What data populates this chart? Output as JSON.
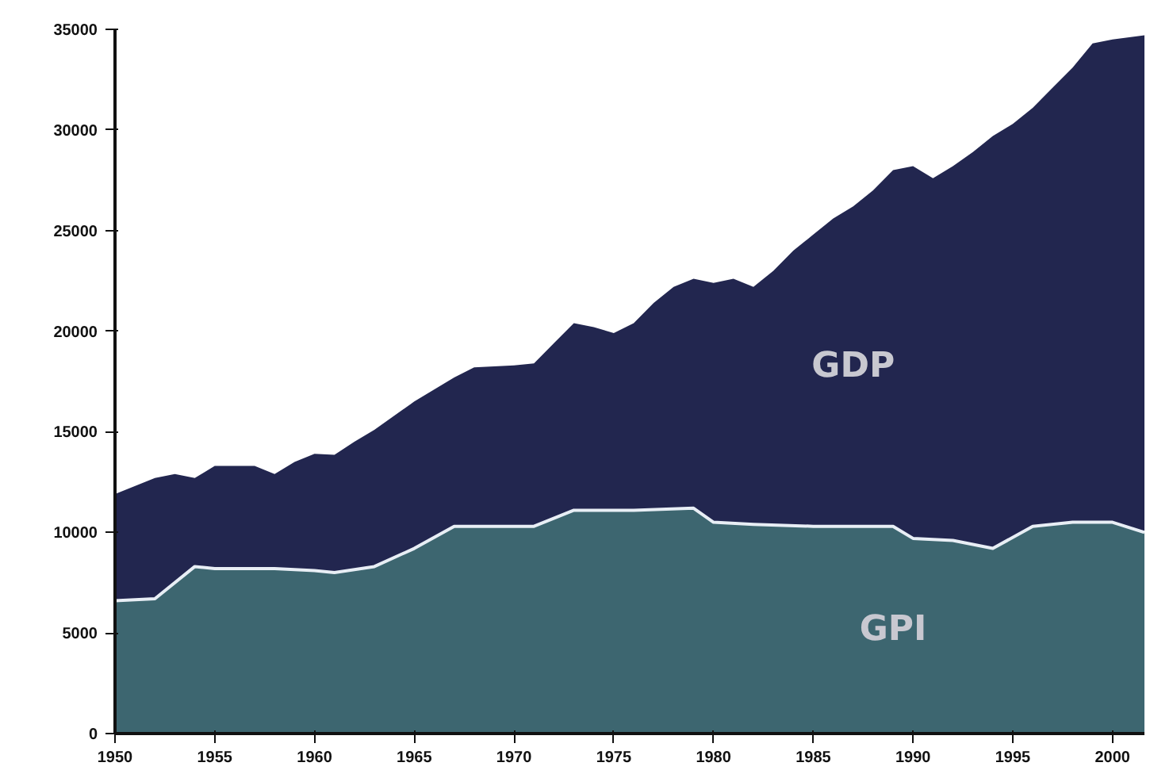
{
  "chart_data": {
    "type": "area",
    "xlim": [
      1950,
      2001.6
    ],
    "xticks": [
      1950,
      1955,
      1960,
      1965,
      1970,
      1975,
      1980,
      1985,
      1990,
      1995,
      2000
    ],
    "ylim": [
      0,
      35000
    ],
    "yticks": [
      0,
      5000,
      10000,
      15000,
      20000,
      25000,
      30000,
      35000
    ],
    "grid": false,
    "series": [
      {
        "name": "GDP",
        "color": "#22264f",
        "x": [
          1950,
          1952,
          1953,
          1954,
          1955,
          1957,
          1958,
          1959,
          1960,
          1961,
          1962,
          1963,
          1965,
          1967,
          1968,
          1970,
          1971,
          1972,
          1973,
          1974,
          1975,
          1976,
          1977,
          1978,
          1979,
          1980,
          1981,
          1982,
          1983,
          1984,
          1985,
          1986,
          1987,
          1988,
          1989,
          1990,
          1991,
          1992,
          1993,
          1994,
          1995,
          1996,
          1997,
          1998,
          1999,
          2000,
          2001.6
        ],
        "values": [
          11900,
          12700,
          12900,
          12700,
          13300,
          13300,
          12900,
          13500,
          13900,
          13850,
          14500,
          15100,
          16500,
          17700,
          18200,
          18300,
          18400,
          19400,
          20400,
          20200,
          19900,
          20400,
          21400,
          22200,
          22600,
          22400,
          22600,
          22200,
          23000,
          24000,
          24800,
          25600,
          26200,
          27000,
          28000,
          28200,
          27600,
          28200,
          28900,
          29700,
          30300,
          31100,
          32100,
          33100,
          34300,
          34500,
          34700
        ]
      },
      {
        "name": "GPI",
        "color": "#3d6670",
        "x": [
          1950,
          1952,
          1954,
          1955,
          1958,
          1960,
          1961,
          1963,
          1965,
          1967,
          1970,
          1971,
          1973,
          1976,
          1979,
          1980,
          1982,
          1985,
          1989,
          1990,
          1992,
          1994,
          1996,
          1998,
          2000,
          2001.6
        ],
        "values": [
          6600,
          6700,
          8300,
          8200,
          8200,
          8100,
          8000,
          8300,
          9200,
          10300,
          10300,
          10300,
          11100,
          11100,
          11200,
          10500,
          10400,
          10300,
          10300,
          9700,
          9600,
          9200,
          10300,
          10500,
          10500,
          10000
        ]
      }
    ]
  }
}
